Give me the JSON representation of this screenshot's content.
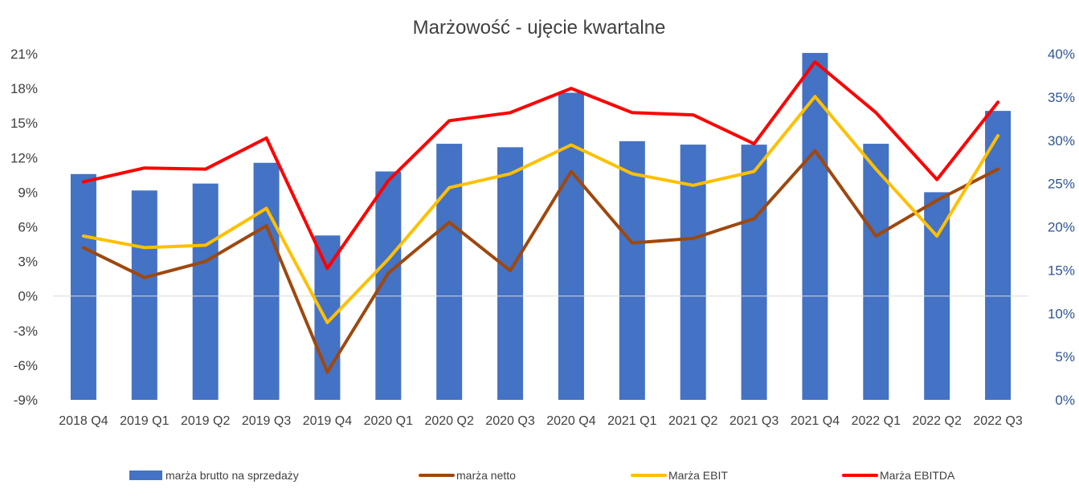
{
  "chart_data": {
    "type": "bar",
    "title": "Marżowość - ujęcie kwartalne",
    "categories": [
      "2018 Q4",
      "2019 Q1",
      "2019 Q2",
      "2019 Q3",
      "2019 Q4",
      "2020 Q1",
      "2020 Q2",
      "2020 Q3",
      "2020 Q4",
      "2021 Q1",
      "2021 Q2",
      "2021 Q3",
      "2021 Q4",
      "2022 Q1",
      "2022 Q2",
      "2022 Q3"
    ],
    "y_left": {
      "ylim": [
        -9,
        21
      ],
      "ticks": [
        21,
        18,
        15,
        12,
        9,
        6,
        3,
        0,
        -3,
        -6,
        -9
      ],
      "tick_labels": [
        "21%",
        "18%",
        "15%",
        "12%",
        "9%",
        "6%",
        "3%",
        "0%",
        "-3%",
        "-6%",
        "-9%"
      ]
    },
    "y_right": {
      "ylim": [
        0,
        40
      ],
      "ticks": [
        40,
        35,
        30,
        25,
        20,
        15,
        10,
        5,
        0
      ],
      "tick_labels": [
        "40%",
        "35%",
        "30%",
        "25%",
        "20%",
        "15%",
        "10%",
        "5%",
        "0%"
      ]
    },
    "series": [
      {
        "name": "marża brutto na sprzedaży",
        "type": "bar",
        "axis": "right",
        "color": "#4472c4",
        "values": [
          26.1,
          24.2,
          25.0,
          27.4,
          19.0,
          26.4,
          29.6,
          29.2,
          35.5,
          29.9,
          29.5,
          29.5,
          40.1,
          29.6,
          24.0,
          33.4
        ]
      },
      {
        "name": "marża netto",
        "type": "line",
        "axis": "left",
        "color": "#9e480e",
        "values": [
          4.2,
          1.6,
          3.0,
          6.1,
          -6.6,
          2.0,
          6.4,
          2.2,
          10.8,
          4.6,
          5.0,
          6.7,
          12.6,
          5.2,
          8.3,
          11.0
        ]
      },
      {
        "name": "Marża EBIT",
        "type": "line",
        "axis": "left",
        "color": "#ffc000",
        "values": [
          5.2,
          4.2,
          4.4,
          7.6,
          -2.3,
          3.2,
          9.4,
          10.6,
          13.1,
          10.6,
          9.6,
          10.8,
          17.3,
          11.0,
          5.2,
          13.9
        ]
      },
      {
        "name": "Marża EBITDA",
        "type": "line",
        "axis": "left",
        "color": "#ff0000",
        "values": [
          9.9,
          11.1,
          11.0,
          13.7,
          2.4,
          10.0,
          15.2,
          15.9,
          18.0,
          15.9,
          15.7,
          13.2,
          20.3,
          15.9,
          10.1,
          16.8
        ]
      }
    ],
    "grid": false,
    "legend": "bottom"
  }
}
